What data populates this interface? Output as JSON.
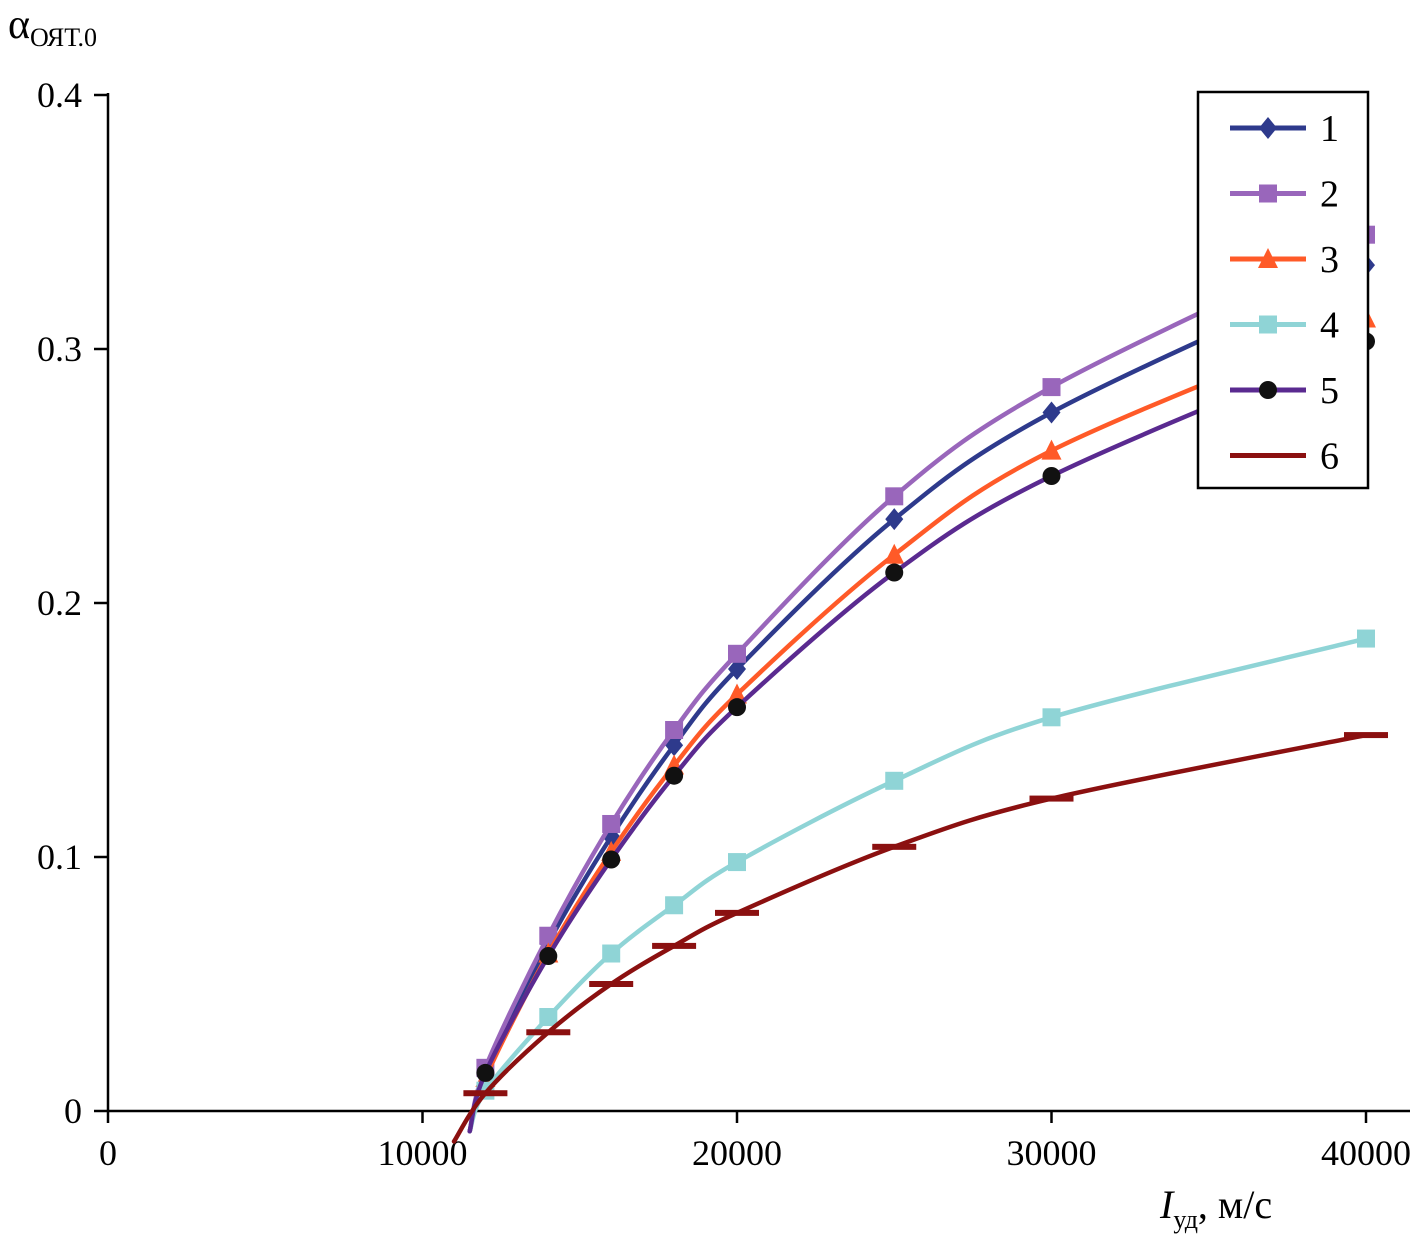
{
  "chart_data": {
    "type": "line",
    "title": "",
    "ylabel": {
      "symbol": "α",
      "subscript": "ОЯТ.0"
    },
    "xlabel": {
      "symbol": "I",
      "subscript": "уд",
      "unit": ", м/с"
    },
    "xlim": [
      0,
      40000
    ],
    "ylim": [
      0,
      0.4
    ],
    "xticks": [
      0,
      10000,
      20000,
      30000,
      40000
    ],
    "xtick_labels": [
      "0",
      "10000",
      "20000",
      "30000",
      "40000"
    ],
    "yticks": [
      0,
      0.1,
      0.2,
      0.3,
      0.4
    ],
    "ytick_labels": [
      "0",
      "0.1",
      "0.2",
      "0.3",
      "0.4"
    ],
    "grid": false,
    "legend_position": "top-right",
    "series": [
      {
        "name": "1",
        "color": "#2e3a8c",
        "marker": "diamond",
        "x": [
          11500,
          12000,
          14000,
          16000,
          18000,
          20000,
          25000,
          30000,
          40000
        ],
        "y": [
          -0.008,
          0.014,
          0.066,
          0.108,
          0.144,
          0.174,
          0.233,
          0.275,
          0.333
        ]
      },
      {
        "name": "2",
        "color": "#9966bb",
        "marker": "square",
        "x": [
          11500,
          12000,
          14000,
          16000,
          18000,
          20000,
          25000,
          30000,
          40000
        ],
        "y": [
          -0.008,
          0.017,
          0.069,
          0.113,
          0.15,
          0.18,
          0.242,
          0.285,
          0.345
        ]
      },
      {
        "name": "3",
        "color": "#ff5a28",
        "marker": "triangle",
        "x": [
          11500,
          12000,
          14000,
          16000,
          18000,
          20000,
          25000,
          30000,
          40000
        ],
        "y": [
          -0.008,
          0.013,
          0.062,
          0.102,
          0.136,
          0.164,
          0.219,
          0.26,
          0.312
        ]
      },
      {
        "name": "4",
        "color": "#8fd4d6",
        "marker": "square",
        "x": [
          11500,
          12000,
          14000,
          16000,
          18000,
          20000,
          25000,
          30000,
          40000
        ],
        "y": [
          -0.008,
          0.008,
          0.037,
          0.062,
          0.081,
          0.098,
          0.13,
          0.155,
          0.186
        ]
      },
      {
        "name": "5",
        "color": "#5a2a90",
        "marker": "circle",
        "marker_color": "#111111",
        "x": [
          11500,
          12000,
          14000,
          16000,
          18000,
          20000,
          25000,
          30000,
          40000
        ],
        "y": [
          -0.008,
          0.015,
          0.061,
          0.099,
          0.132,
          0.159,
          0.212,
          0.25,
          0.303
        ]
      },
      {
        "name": "6",
        "color": "#8b1010",
        "marker": "dash",
        "x": [
          11000,
          12000,
          14000,
          16000,
          18000,
          20000,
          25000,
          30000,
          40000
        ],
        "y": [
          -0.012,
          0.007,
          0.031,
          0.05,
          0.065,
          0.078,
          0.104,
          0.123,
          0.148
        ]
      }
    ]
  }
}
